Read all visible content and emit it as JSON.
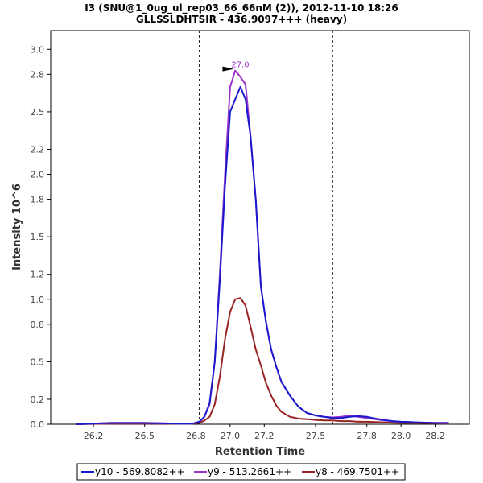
{
  "chart_data": {
    "type": "line",
    "title": "I3 (SNU@1_0ug_ul_rep03_66_66nM (2)), 2012-11-10 18:26",
    "subtitle": "GLLSSLDHTSIR - 436.9097+++ (heavy)",
    "xlabel": "Retention Time",
    "ylabel": "Intensity 10^6",
    "xlim": [
      25.95,
      28.4
    ],
    "ylim": [
      0,
      3.15
    ],
    "xticks": [
      "26.2",
      "26.5",
      "26.8",
      "27.0",
      "27.2",
      "27.5",
      "27.8",
      "28.0",
      "28.2"
    ],
    "yticks": [
      "0.0",
      "0.2",
      "0.5",
      "0.8",
      "1.0",
      "1.2",
      "1.5",
      "1.8",
      "2.0",
      "2.2",
      "2.5",
      "2.8",
      "3.0"
    ],
    "grid": false,
    "legend_position": "bottom",
    "vlines": [
      26.82,
      27.6
    ],
    "peak_annotation": {
      "x": 27.05,
      "y": 2.83,
      "label": "27.0",
      "color": "#9933cc"
    },
    "series": [
      {
        "name": "y10 - 569.8082++",
        "color": "#1a1acc",
        "x": [
          26.1,
          26.3,
          26.5,
          26.7,
          26.78,
          26.82,
          26.85,
          26.88,
          26.91,
          26.94,
          26.97,
          27.0,
          27.03,
          27.06,
          27.09,
          27.12,
          27.15,
          27.18,
          27.21,
          27.24,
          27.27,
          27.3,
          27.35,
          27.4,
          27.45,
          27.5,
          27.55,
          27.6,
          27.65,
          27.7,
          27.75,
          27.8,
          27.85,
          27.9,
          27.95,
          28.0,
          28.1,
          28.2,
          28.28
        ],
        "values": [
          0.0,
          0.01,
          0.01,
          0.005,
          0.005,
          0.02,
          0.06,
          0.17,
          0.5,
          1.15,
          1.9,
          2.5,
          2.6,
          2.7,
          2.6,
          2.3,
          1.8,
          1.1,
          0.82,
          0.6,
          0.46,
          0.34,
          0.23,
          0.14,
          0.09,
          0.07,
          0.06,
          0.05,
          0.05,
          0.06,
          0.065,
          0.06,
          0.045,
          0.035,
          0.025,
          0.02,
          0.015,
          0.01,
          0.01
        ]
      },
      {
        "name": "y9 - 513.2661++",
        "color": "#9933cc",
        "x": [
          26.1,
          26.3,
          26.5,
          26.7,
          26.78,
          26.82,
          26.85,
          26.88,
          26.91,
          26.94,
          26.97,
          27.0,
          27.03,
          27.06,
          27.09,
          27.12,
          27.15,
          27.18,
          27.21,
          27.24,
          27.27,
          27.3,
          27.35,
          27.4,
          27.45,
          27.5,
          27.55,
          27.6,
          27.65,
          27.7,
          27.75,
          27.8,
          27.85,
          27.9,
          27.95,
          28.0,
          28.1,
          28.2,
          28.28
        ],
        "values": [
          0.0,
          0.01,
          0.01,
          0.005,
          0.005,
          0.02,
          0.06,
          0.16,
          0.5,
          1.2,
          2.0,
          2.7,
          2.83,
          2.78,
          2.72,
          2.3,
          1.8,
          1.1,
          0.82,
          0.6,
          0.46,
          0.34,
          0.23,
          0.14,
          0.09,
          0.07,
          0.06,
          0.055,
          0.06,
          0.07,
          0.06,
          0.05,
          0.04,
          0.03,
          0.025,
          0.02,
          0.015,
          0.01,
          0.01
        ]
      },
      {
        "name": "y8 - 469.7501++",
        "color": "#992222",
        "x": [
          26.1,
          26.3,
          26.5,
          26.7,
          26.78,
          26.82,
          26.85,
          26.88,
          26.91,
          26.94,
          26.97,
          27.0,
          27.03,
          27.06,
          27.09,
          27.12,
          27.15,
          27.18,
          27.21,
          27.24,
          27.27,
          27.3,
          27.35,
          27.4,
          27.45,
          27.5,
          27.55,
          27.6,
          27.65,
          27.7,
          27.75,
          27.8,
          27.85,
          27.9,
          27.95,
          28.0,
          28.1,
          28.2,
          28.28
        ],
        "values": [
          0.0,
          0.005,
          0.005,
          0.005,
          0.005,
          0.01,
          0.03,
          0.06,
          0.16,
          0.38,
          0.68,
          0.9,
          1.0,
          1.01,
          0.95,
          0.78,
          0.6,
          0.47,
          0.33,
          0.23,
          0.15,
          0.1,
          0.06,
          0.045,
          0.04,
          0.035,
          0.03,
          0.03,
          0.025,
          0.025,
          0.02,
          0.02,
          0.018,
          0.015,
          0.012,
          0.01,
          0.01,
          0.008,
          0.005
        ]
      }
    ]
  }
}
